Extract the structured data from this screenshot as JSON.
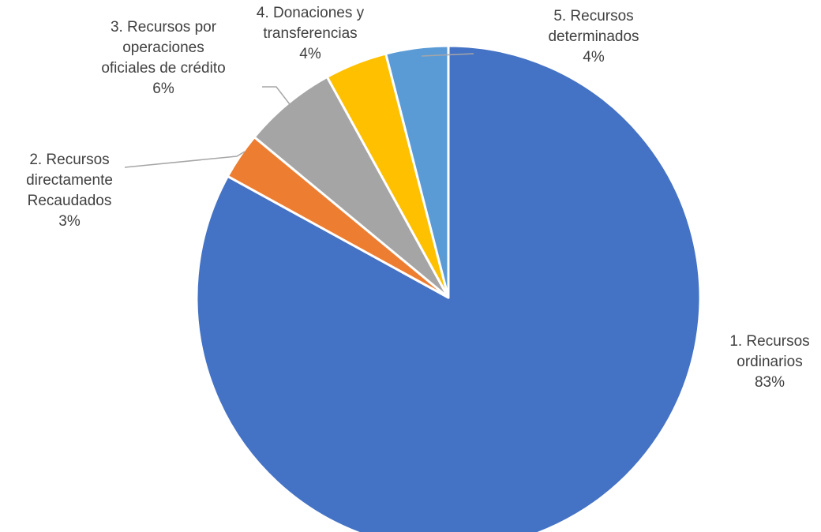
{
  "chart_data": {
    "type": "pie",
    "categories": [
      "1. Recursos ordinarios",
      "2. Recursos directamente Recaudados",
      "3. Recursos por operaciones oficiales de crédito",
      "4. Donaciones y transferencias",
      "5. Recursos determinados"
    ],
    "values": [
      83,
      3,
      6,
      4,
      4
    ],
    "value_labels": [
      "83%",
      "3%",
      "6%",
      "4%",
      "4%"
    ],
    "colors": [
      "#4472c4",
      "#ed7d31",
      "#a5a5a5",
      "#ffc000",
      "#5b9bd5"
    ]
  }
}
